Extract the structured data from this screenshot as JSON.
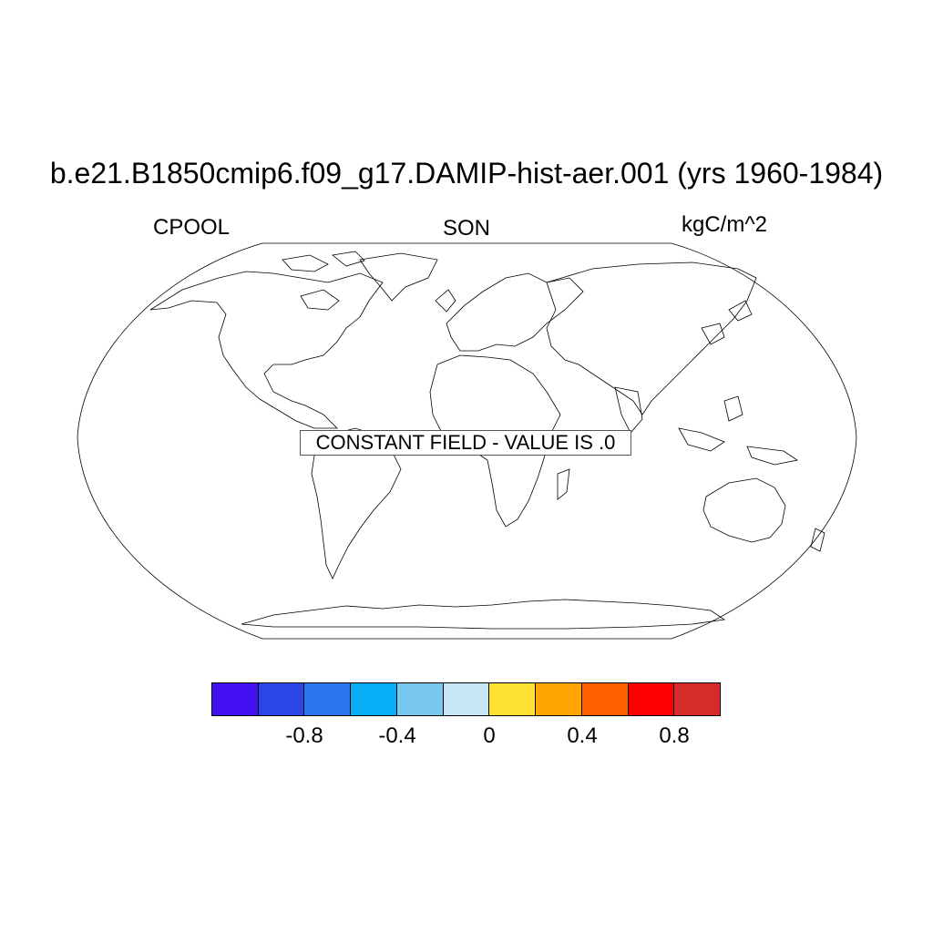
{
  "title": "b.e21.B1850cmip6.f09_g17.DAMIP-hist-aer.001 (yrs 1960-1984)",
  "left_label": "CPOOL",
  "center_label": "SON",
  "right_label": "kgC/m^2",
  "annotation": "CONSTANT FIELD - VALUE IS .0",
  "projection": "Robinson",
  "colorbar": {
    "colors": [
      "#4411f2",
      "#2b46e6",
      "#2b78ee",
      "#08adf8",
      "#79c9ef",
      "#c6e6f6",
      "#fee232",
      "#ffa700",
      "#ff6000",
      "#fe0000",
      "#d62b2b"
    ],
    "tick_labels": [
      "-0.8",
      "-0.4",
      "0",
      "0.4",
      "0.8"
    ]
  }
}
